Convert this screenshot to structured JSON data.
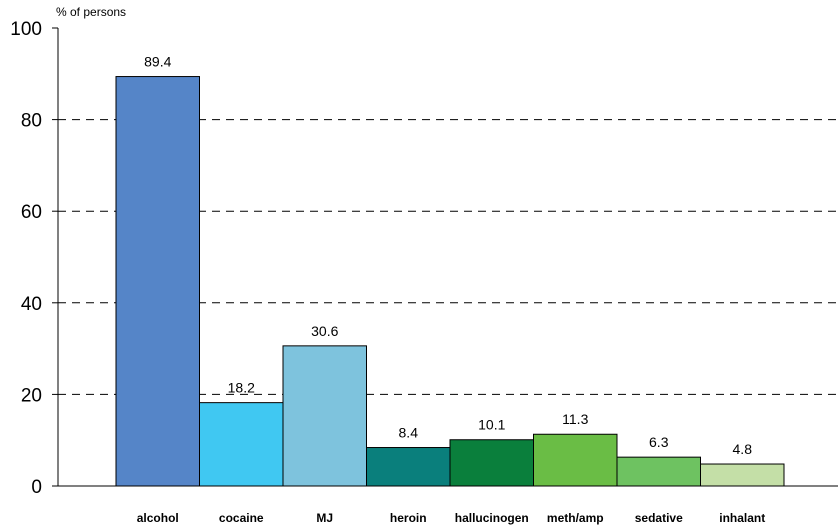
{
  "chart_data": {
    "type": "bar",
    "ylabel": "% of persons",
    "ylim": [
      0,
      100
    ],
    "yticks": [
      0,
      20,
      40,
      60,
      80,
      100
    ],
    "grid": "horizontal-dashed",
    "categories": [
      "alcohol",
      "cocaine",
      "MJ",
      "heroin",
      "hallucinogen",
      "meth/amp",
      "sedative",
      "inhalant"
    ],
    "values": [
      89.4,
      18.2,
      30.6,
      8.4,
      10.1,
      11.3,
      6.3,
      4.8
    ],
    "value_labels": [
      "89.4",
      "18.2",
      "30.6",
      "8.4",
      "10.1",
      "11.3",
      "6.3",
      "4.8"
    ],
    "colors": [
      "#5585c8",
      "#40c8f2",
      "#7ec3dd",
      "#0a7f7c",
      "#0a7f3c",
      "#6abd45",
      "#6ec261",
      "#c4dfa7"
    ]
  }
}
